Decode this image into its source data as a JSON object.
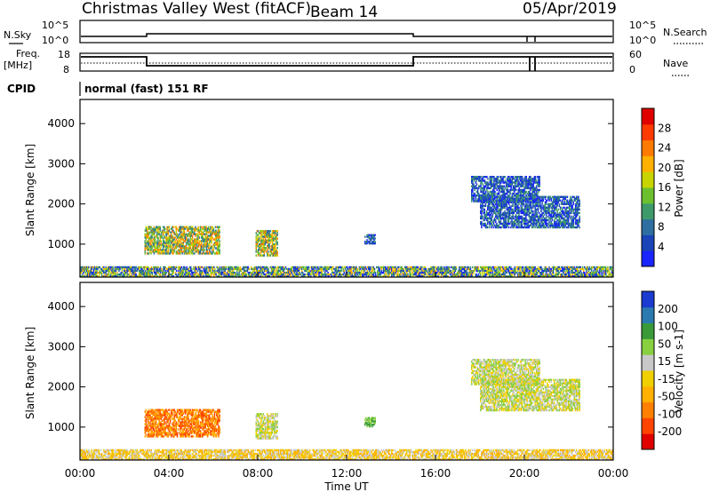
{
  "header": {
    "station": "Christmas Valley West (fitACF)",
    "beam": "Beam 14",
    "date": "05/Apr/2019"
  },
  "params": {
    "nsky_label": "N.Sky",
    "nsky_max": "10^5",
    "nsky_min": "10^0",
    "nsearch_label": "N.Search",
    "nsearch_max": "10^5",
    "nsearch_min": "10^0",
    "freq_label": "Freq.",
    "freq_unit": "[MHz]",
    "freq_max": "18",
    "freq_min": "8",
    "nave_label": "Nave",
    "nave_max": "60",
    "nave_min": "0",
    "cpid_label": "CPID",
    "cpid_value": "normal (fast) 151 RF"
  },
  "axes": {
    "ylabel": "Slant Range [km]",
    "xlabel": "Time UT",
    "y_ticks": [
      "1000",
      "2000",
      "3000",
      "4000"
    ],
    "x_ticks": [
      "00:00",
      "04:00",
      "08:00",
      "12:00",
      "16:00",
      "20:00",
      "00:00"
    ]
  },
  "colors": {
    "power": [
      "#1a24ff",
      "#1a44b8",
      "#2f6ea0",
      "#3e9a6a",
      "#6cc02e",
      "#c8d400",
      "#ffb000",
      "#ff7a00",
      "#ff3a00",
      "#e00000"
    ],
    "velocity": [
      "#e00000",
      "#ff4400",
      "#ff8000",
      "#ffb000",
      "#f0d000",
      "#c8c8c8",
      "#88d040",
      "#3a9a3a",
      "#2a7ab0",
      "#1a3ad0"
    ]
  },
  "chart_data": [
    {
      "type": "heatmap",
      "title": "Power",
      "colorbar_label": "Power [dB]",
      "colorbar_ticks": [
        "4",
        "8",
        "12",
        "16",
        "20",
        "24",
        "28"
      ],
      "ylabel": "Slant Range [km]",
      "ylim": [
        180,
        4600
      ],
      "xlim_hours": [
        0,
        24
      ],
      "patches": [
        {
          "t0": 2.9,
          "t1": 6.3,
          "r0": 750,
          "r1": 1450,
          "level": "high"
        },
        {
          "t0": 7.9,
          "t1": 8.9,
          "r0": 700,
          "r1": 1350,
          "level": "high"
        },
        {
          "t0": 12.8,
          "t1": 13.3,
          "r0": 1000,
          "r1": 1250,
          "level": "low"
        },
        {
          "t0": 17.6,
          "t1": 20.7,
          "r0": 2050,
          "r1": 2700,
          "level": "low"
        },
        {
          "t0": 18.0,
          "t1": 22.5,
          "r0": 1400,
          "r1": 2200,
          "level": "low"
        },
        {
          "t0": 0.0,
          "t1": 24.0,
          "r0": 180,
          "r1": 450,
          "level": "mixed"
        }
      ]
    },
    {
      "type": "heatmap",
      "title": "Velocity",
      "colorbar_label": "Velocity [m s-1]",
      "colorbar_ticks": [
        "-200",
        "-100",
        "-50",
        "-15",
        "15",
        "50",
        "100",
        "200"
      ],
      "ylabel": "Slant Range [km]",
      "ylim": [
        180,
        4600
      ],
      "xlim_hours": [
        0,
        24
      ],
      "patches": [
        {
          "t0": 2.9,
          "t1": 6.3,
          "r0": 750,
          "r1": 1450,
          "level": "-100"
        },
        {
          "t0": 7.9,
          "t1": 8.9,
          "r0": 700,
          "r1": 1350,
          "level": "0"
        },
        {
          "t0": 12.8,
          "t1": 13.3,
          "r0": 1000,
          "r1": 1250,
          "level": "50"
        },
        {
          "t0": 17.6,
          "t1": 20.7,
          "r0": 2050,
          "r1": 2700,
          "level": "0"
        },
        {
          "t0": 18.0,
          "t1": 22.5,
          "r0": 1400,
          "r1": 2200,
          "level": "0"
        },
        {
          "t0": 0.0,
          "t1": 24.0,
          "r0": 180,
          "r1": 450,
          "level": "-50"
        }
      ]
    }
  ]
}
